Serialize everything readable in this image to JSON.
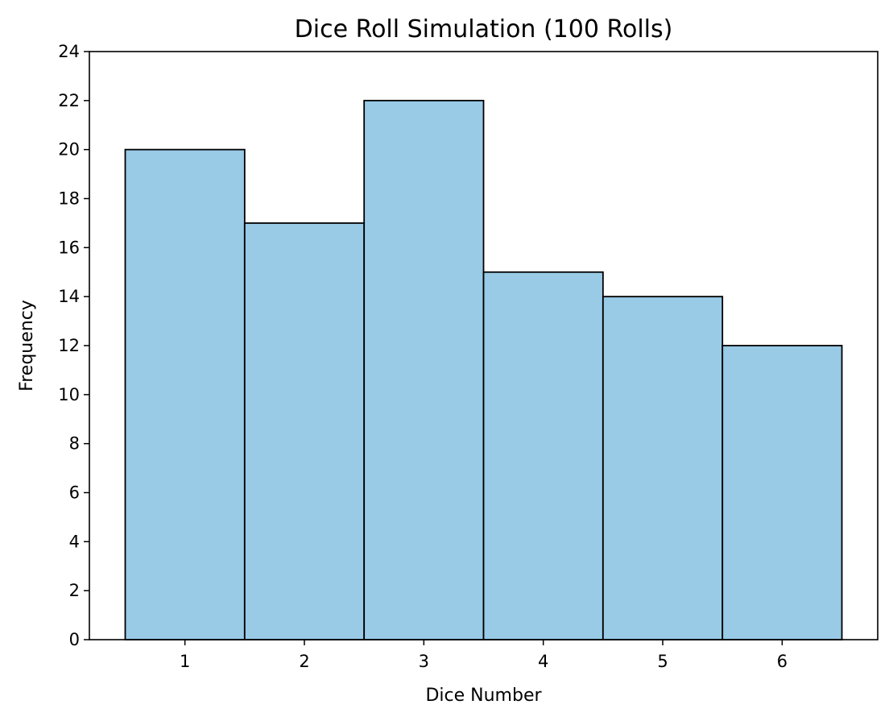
{
  "chart_data": {
    "type": "bar",
    "title": "Dice Roll Simulation (100 Rolls)",
    "xlabel": "Dice Number",
    "ylabel": "Frequency",
    "categories": [
      "1",
      "2",
      "3",
      "4",
      "5",
      "6"
    ],
    "values": [
      20,
      17,
      22,
      15,
      14,
      12
    ],
    "xlim": [
      0.2,
      6.8
    ],
    "ylim": [
      0,
      24
    ],
    "y_ticks": [
      0,
      2,
      4,
      6,
      8,
      10,
      12,
      14,
      16,
      18,
      20,
      22,
      24
    ],
    "grid": false,
    "legend": "none",
    "colors": {
      "bar_fill": "#99cae6",
      "bar_edge": "#000000",
      "axis": "#000000",
      "background": "#ffffff"
    }
  }
}
